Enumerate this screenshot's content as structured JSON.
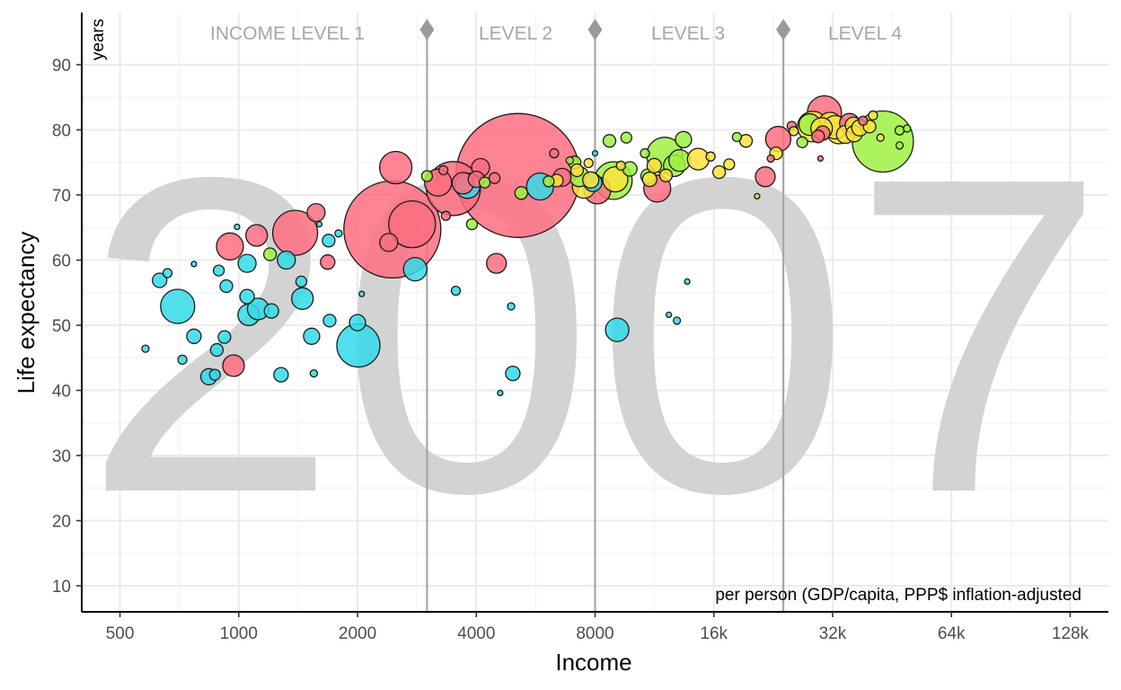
{
  "chart_data": {
    "type": "scatter",
    "variant": "bubble",
    "year": "2007",
    "xlabel": "Income",
    "ylabel": "Life expectancy",
    "x_unit_note": "per person (GDP/capita, PPP$ inflation-adjusted",
    "y_unit_note": "years",
    "x_scale": "log2",
    "xlim": [
      400,
      160000
    ],
    "ylim": [
      6,
      98
    ],
    "x_ticks": [
      {
        "value": 500,
        "label": "500"
      },
      {
        "value": 1000,
        "label": "1000"
      },
      {
        "value": 2000,
        "label": "2000"
      },
      {
        "value": 4000,
        "label": "4000"
      },
      {
        "value": 8000,
        "label": "8000"
      },
      {
        "value": 16000,
        "label": "16k"
      },
      {
        "value": 32000,
        "label": "32k"
      },
      {
        "value": 64000,
        "label": "64k"
      },
      {
        "value": 128000,
        "label": "128k"
      }
    ],
    "y_ticks": [
      10,
      20,
      30,
      40,
      50,
      60,
      70,
      80,
      90
    ],
    "income_levels": [
      {
        "label": "INCOME LEVEL 1",
        "from": 400,
        "to": 3000
      },
      {
        "label": "LEVEL 2",
        "from": 3000,
        "to": 8000
      },
      {
        "label": "LEVEL 3",
        "from": 8000,
        "to": 24000
      },
      {
        "label": "LEVEL 4",
        "from": 24000,
        "to": 160000
      }
    ],
    "level_boundaries": [
      3000,
      8000,
      24000
    ],
    "colors": {
      "africa": "#33dbe8",
      "asia": "#fe6d80",
      "americas": "#9df142",
      "europe": "#fce33a"
    },
    "points": [
      {
        "x": 580,
        "y": 46.4,
        "r": 4,
        "region": "africa"
      },
      {
        "x": 630,
        "y": 56.9,
        "r": 8,
        "region": "africa"
      },
      {
        "x": 660,
        "y": 58.0,
        "r": 5,
        "region": "africa"
      },
      {
        "x": 700,
        "y": 52.9,
        "r": 19,
        "region": "africa"
      },
      {
        "x": 720,
        "y": 44.7,
        "r": 5,
        "region": "africa"
      },
      {
        "x": 770,
        "y": 59.4,
        "r": 3,
        "region": "africa"
      },
      {
        "x": 770,
        "y": 48.3,
        "r": 8,
        "region": "africa"
      },
      {
        "x": 840,
        "y": 42.1,
        "r": 9,
        "region": "africa"
      },
      {
        "x": 870,
        "y": 42.4,
        "r": 6,
        "region": "africa"
      },
      {
        "x": 880,
        "y": 46.2,
        "r": 7,
        "region": "africa"
      },
      {
        "x": 890,
        "y": 58.4,
        "r": 6,
        "region": "africa"
      },
      {
        "x": 920,
        "y": 48.2,
        "r": 7,
        "region": "africa"
      },
      {
        "x": 930,
        "y": 56.0,
        "r": 7,
        "region": "africa"
      },
      {
        "x": 950,
        "y": 62.1,
        "r": 15,
        "region": "asia"
      },
      {
        "x": 970,
        "y": 43.8,
        "r": 12,
        "region": "asia"
      },
      {
        "x": 990,
        "y": 65.1,
        "r": 3,
        "region": "africa"
      },
      {
        "x": 1050,
        "y": 59.5,
        "r": 10,
        "region": "africa"
      },
      {
        "x": 1050,
        "y": 54.4,
        "r": 8,
        "region": "africa"
      },
      {
        "x": 1060,
        "y": 51.6,
        "r": 12,
        "region": "africa"
      },
      {
        "x": 1110,
        "y": 63.8,
        "r": 12,
        "region": "asia"
      },
      {
        "x": 1120,
        "y": 52.5,
        "r": 12,
        "region": "africa"
      },
      {
        "x": 1200,
        "y": 60.9,
        "r": 7,
        "region": "americas"
      },
      {
        "x": 1210,
        "y": 52.2,
        "r": 8,
        "region": "africa"
      },
      {
        "x": 1280,
        "y": 42.4,
        "r": 8,
        "region": "africa"
      },
      {
        "x": 1320,
        "y": 60.0,
        "r": 10,
        "region": "africa"
      },
      {
        "x": 1390,
        "y": 64.2,
        "r": 25,
        "region": "asia"
      },
      {
        "x": 1440,
        "y": 56.7,
        "r": 6,
        "region": "africa"
      },
      {
        "x": 1450,
        "y": 54.1,
        "r": 12,
        "region": "africa"
      },
      {
        "x": 1530,
        "y": 48.3,
        "r": 9,
        "region": "africa"
      },
      {
        "x": 1550,
        "y": 42.6,
        "r": 4,
        "region": "africa"
      },
      {
        "x": 1570,
        "y": 67.3,
        "r": 10,
        "region": "asia"
      },
      {
        "x": 1600,
        "y": 65.5,
        "r": 3,
        "region": "africa"
      },
      {
        "x": 1680,
        "y": 59.7,
        "r": 8,
        "region": "asia"
      },
      {
        "x": 1690,
        "y": 63.0,
        "r": 7,
        "region": "africa"
      },
      {
        "x": 1700,
        "y": 50.7,
        "r": 7,
        "region": "africa"
      },
      {
        "x": 1790,
        "y": 64.1,
        "r": 4,
        "region": "africa"
      },
      {
        "x": 2000,
        "y": 50.4,
        "r": 9,
        "region": "africa"
      },
      {
        "x": 2010,
        "y": 46.9,
        "r": 24,
        "region": "africa"
      },
      {
        "x": 2050,
        "y": 54.8,
        "r": 3,
        "region": "africa"
      },
      {
        "x": 2400,
        "y": 62.7,
        "r": 10,
        "region": "asia"
      },
      {
        "x": 2450,
        "y": 64.7,
        "r": 54,
        "region": "asia"
      },
      {
        "x": 2500,
        "y": 74.2,
        "r": 18,
        "region": "asia"
      },
      {
        "x": 2750,
        "y": 65.5,
        "r": 26,
        "region": "asia"
      },
      {
        "x": 2800,
        "y": 58.6,
        "r": 13,
        "region": "africa"
      },
      {
        "x": 3000,
        "y": 72.9,
        "r": 6,
        "region": "americas"
      },
      {
        "x": 3200,
        "y": 71.9,
        "r": 15,
        "region": "asia"
      },
      {
        "x": 3300,
        "y": 73.8,
        "r": 5,
        "region": "asia"
      },
      {
        "x": 3350,
        "y": 66.8,
        "r": 5,
        "region": "asia"
      },
      {
        "x": 3500,
        "y": 71.0,
        "r": 30,
        "region": "asia"
      },
      {
        "x": 3550,
        "y": 55.3,
        "r": 5,
        "region": "africa"
      },
      {
        "x": 3700,
        "y": 71.8,
        "r": 12,
        "region": "asia"
      },
      {
        "x": 3800,
        "y": 71.4,
        "r": 14,
        "region": "africa"
      },
      {
        "x": 3900,
        "y": 65.5,
        "r": 6,
        "region": "americas"
      },
      {
        "x": 4000,
        "y": 72.4,
        "r": 9,
        "region": "asia"
      },
      {
        "x": 4100,
        "y": 74.2,
        "r": 10,
        "region": "asia"
      },
      {
        "x": 4200,
        "y": 71.9,
        "r": 6,
        "region": "americas"
      },
      {
        "x": 4450,
        "y": 72.6,
        "r": 6,
        "region": "asia"
      },
      {
        "x": 4500,
        "y": 59.5,
        "r": 11,
        "region": "asia"
      },
      {
        "x": 4600,
        "y": 39.6,
        "r": 3,
        "region": "africa"
      },
      {
        "x": 4900,
        "y": 52.9,
        "r": 4,
        "region": "africa"
      },
      {
        "x": 4950,
        "y": 42.6,
        "r": 8,
        "region": "africa"
      },
      {
        "x": 5100,
        "y": 73.0,
        "r": 69,
        "region": "asia"
      },
      {
        "x": 5200,
        "y": 70.3,
        "r": 7,
        "region": "americas"
      },
      {
        "x": 5800,
        "y": 71.3,
        "r": 15,
        "region": "africa"
      },
      {
        "x": 6100,
        "y": 72.1,
        "r": 6,
        "region": "americas"
      },
      {
        "x": 6300,
        "y": 76.4,
        "r": 5,
        "region": "asia"
      },
      {
        "x": 6400,
        "y": 72.2,
        "r": 7,
        "region": "europe"
      },
      {
        "x": 6600,
        "y": 72.7,
        "r": 10,
        "region": "asia"
      },
      {
        "x": 6900,
        "y": 75.3,
        "r": 4,
        "region": "americas"
      },
      {
        "x": 7100,
        "y": 75.0,
        "r": 7,
        "region": "americas"
      },
      {
        "x": 7200,
        "y": 73.8,
        "r": 7,
        "region": "europe"
      },
      {
        "x": 7300,
        "y": 72.8,
        "r": 11,
        "region": "americas"
      },
      {
        "x": 7500,
        "y": 71.3,
        "r": 13,
        "region": "europe"
      },
      {
        "x": 7700,
        "y": 74.9,
        "r": 5,
        "region": "europe"
      },
      {
        "x": 7800,
        "y": 72.3,
        "r": 9,
        "region": "europe"
      },
      {
        "x": 7900,
        "y": 71.9,
        "r": 10,
        "region": "africa"
      },
      {
        "x": 8000,
        "y": 76.4,
        "r": 3,
        "region": "africa"
      },
      {
        "x": 8100,
        "y": 70.7,
        "r": 15,
        "region": "asia"
      },
      {
        "x": 8700,
        "y": 78.3,
        "r": 7,
        "region": "americas"
      },
      {
        "x": 8900,
        "y": 72.2,
        "r": 21,
        "region": "americas"
      },
      {
        "x": 9000,
        "y": 72.4,
        "r": 14,
        "region": "europe"
      },
      {
        "x": 9100,
        "y": 49.3,
        "r": 13,
        "region": "africa"
      },
      {
        "x": 9300,
        "y": 74.5,
        "r": 5,
        "region": "europe"
      },
      {
        "x": 9600,
        "y": 78.8,
        "r": 6,
        "region": "americas"
      },
      {
        "x": 9800,
        "y": 74.0,
        "r": 8,
        "region": "americas"
      },
      {
        "x": 10700,
        "y": 76.4,
        "r": 5,
        "region": "americas"
      },
      {
        "x": 10900,
        "y": 72.9,
        "r": 8,
        "region": "americas"
      },
      {
        "x": 11000,
        "y": 72.4,
        "r": 8,
        "region": "europe"
      },
      {
        "x": 11300,
        "y": 74.5,
        "r": 8,
        "region": "europe"
      },
      {
        "x": 11500,
        "y": 71.0,
        "r": 15,
        "region": "asia"
      },
      {
        "x": 12000,
        "y": 76.1,
        "r": 20,
        "region": "americas"
      },
      {
        "x": 12100,
        "y": 73.0,
        "r": 7,
        "region": "europe"
      },
      {
        "x": 12300,
        "y": 51.6,
        "r": 3,
        "region": "africa"
      },
      {
        "x": 12700,
        "y": 74.5,
        "r": 12,
        "region": "americas"
      },
      {
        "x": 12900,
        "y": 50.7,
        "r": 4,
        "region": "africa"
      },
      {
        "x": 13100,
        "y": 75.3,
        "r": 12,
        "region": "americas"
      },
      {
        "x": 13400,
        "y": 78.5,
        "r": 9,
        "region": "americas"
      },
      {
        "x": 13700,
        "y": 56.7,
        "r": 3,
        "region": "africa"
      },
      {
        "x": 14600,
        "y": 75.5,
        "r": 12,
        "region": "europe"
      },
      {
        "x": 15700,
        "y": 75.9,
        "r": 5,
        "region": "europe"
      },
      {
        "x": 16500,
        "y": 73.5,
        "r": 7,
        "region": "europe"
      },
      {
        "x": 17500,
        "y": 74.7,
        "r": 6,
        "region": "europe"
      },
      {
        "x": 18300,
        "y": 78.9,
        "r": 5,
        "region": "americas"
      },
      {
        "x": 19300,
        "y": 78.3,
        "r": 7,
        "region": "europe"
      },
      {
        "x": 20600,
        "y": 69.8,
        "r": 3,
        "region": "americas"
      },
      {
        "x": 21600,
        "y": 72.8,
        "r": 11,
        "region": "asia"
      },
      {
        "x": 22300,
        "y": 75.6,
        "r": 4,
        "region": "asia"
      },
      {
        "x": 23000,
        "y": 76.4,
        "r": 7,
        "region": "europe"
      },
      {
        "x": 23300,
        "y": 78.6,
        "r": 14,
        "region": "asia"
      },
      {
        "x": 25200,
        "y": 80.6,
        "r": 5,
        "region": "asia"
      },
      {
        "x": 25500,
        "y": 79.8,
        "r": 5,
        "region": "europe"
      },
      {
        "x": 26800,
        "y": 78.1,
        "r": 6,
        "region": "americas"
      },
      {
        "x": 28000,
        "y": 80.8,
        "r": 12,
        "region": "americas"
      },
      {
        "x": 28500,
        "y": 80.5,
        "r": 17,
        "region": "europe"
      },
      {
        "x": 29400,
        "y": 79.0,
        "r": 7,
        "region": "asia"
      },
      {
        "x": 29800,
        "y": 75.6,
        "r": 3,
        "region": "asia"
      },
      {
        "x": 30000,
        "y": 80.2,
        "r": 12,
        "region": "europe"
      },
      {
        "x": 30200,
        "y": 79.5,
        "r": 8,
        "region": "asia"
      },
      {
        "x": 30500,
        "y": 82.6,
        "r": 19,
        "region": "asia"
      },
      {
        "x": 31500,
        "y": 80.9,
        "r": 13,
        "region": "europe"
      },
      {
        "x": 32500,
        "y": 80.4,
        "r": 13,
        "region": "europe"
      },
      {
        "x": 33200,
        "y": 79.8,
        "r": 14,
        "region": "europe"
      },
      {
        "x": 34500,
        "y": 79.3,
        "r": 10,
        "region": "europe"
      },
      {
        "x": 35300,
        "y": 81.0,
        "r": 11,
        "region": "asia"
      },
      {
        "x": 36100,
        "y": 80.7,
        "r": 9,
        "region": "europe"
      },
      {
        "x": 36300,
        "y": 79.4,
        "r": 9,
        "region": "europe"
      },
      {
        "x": 37500,
        "y": 80.3,
        "r": 9,
        "region": "europe"
      },
      {
        "x": 38200,
        "y": 81.4,
        "r": 5,
        "region": "asia"
      },
      {
        "x": 39700,
        "y": 80.5,
        "r": 7,
        "region": "europe"
      },
      {
        "x": 40500,
        "y": 82.2,
        "r": 5,
        "region": "europe"
      },
      {
        "x": 42300,
        "y": 78.8,
        "r": 4,
        "region": "europe"
      },
      {
        "x": 42900,
        "y": 78.2,
        "r": 34,
        "region": "americas"
      },
      {
        "x": 47300,
        "y": 77.6,
        "r": 4,
        "region": "americas"
      },
      {
        "x": 47300,
        "y": 79.9,
        "r": 5,
        "region": "americas"
      },
      {
        "x": 49400,
        "y": 80.2,
        "r": 4,
        "region": "americas"
      }
    ]
  }
}
